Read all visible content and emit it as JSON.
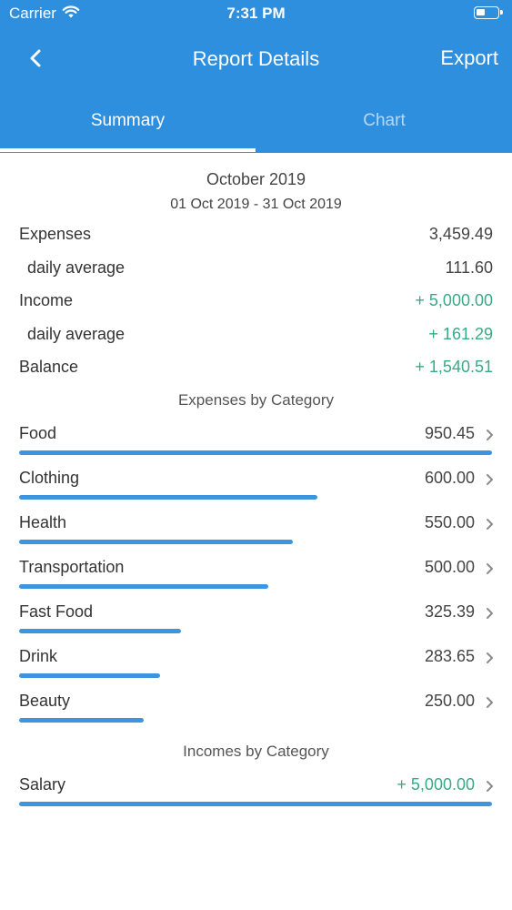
{
  "status_bar": {
    "carrier": "Carrier",
    "time": "7:31 PM",
    "battery_level": 0.45
  },
  "nav": {
    "title": "Report Details",
    "export_label": "Export"
  },
  "tabs": [
    {
      "label": "Summary",
      "active": true
    },
    {
      "label": "Chart",
      "active": false
    }
  ],
  "summary": {
    "period": "October 2019",
    "range": "01 Oct 2019 - 31 Oct 2019",
    "rows": [
      {
        "label": "Expenses",
        "value": "3,459.49",
        "indent": false,
        "positive": false
      },
      {
        "label": "daily average",
        "value": "111.60",
        "indent": true,
        "positive": false
      },
      {
        "label": "Income",
        "value": "+ 5,000.00",
        "indent": false,
        "positive": true
      },
      {
        "label": "daily average",
        "value": "+ 161.29",
        "indent": true,
        "positive": true
      },
      {
        "label": "Balance",
        "value": "+ 1,540.51",
        "indent": false,
        "positive": true
      }
    ]
  },
  "expenses_by_category": {
    "title": "Expenses by Category",
    "items": [
      {
        "name": "Food",
        "amount": "950.45",
        "amount_value": 950.45
      },
      {
        "name": "Clothing",
        "amount": "600.00",
        "amount_value": 600.0
      },
      {
        "name": "Health",
        "amount": "550.00",
        "amount_value": 550.0
      },
      {
        "name": "Transportation",
        "amount": "500.00",
        "amount_value": 500.0
      },
      {
        "name": "Fast Food",
        "amount": "325.39",
        "amount_value": 325.39
      },
      {
        "name": "Drink",
        "amount": "283.65",
        "amount_value": 283.65
      },
      {
        "name": "Beauty",
        "amount": "250.00",
        "amount_value": 250.0
      }
    ]
  },
  "incomes_by_category": {
    "title": "Incomes by Category",
    "items": [
      {
        "name": "Salary",
        "amount": "+ 5,000.00",
        "amount_value": 5000.0
      }
    ]
  },
  "colors": {
    "header": "#2e8fde",
    "bar": "#3d95e0",
    "positive": "#3aaa85",
    "chevron": "#8a8a8a"
  },
  "icons": {
    "back": "chevron-left-icon",
    "wifi": "wifi-icon",
    "battery": "battery-icon",
    "row_chevron": "chevron-right-icon"
  }
}
